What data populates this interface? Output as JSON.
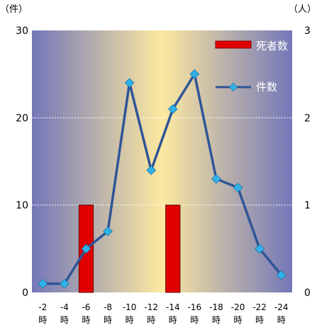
{
  "chart_data": {
    "type": "bar+line",
    "title": "",
    "categories": [
      "-2時",
      "-4時",
      "-6時",
      "-8時",
      "-10時",
      "-12時",
      "-14時",
      "-16時",
      "-18時",
      "-20時",
      "-22時",
      "-24時"
    ],
    "x_tick_labels": [
      {
        "top": "-2",
        "bottom": "時"
      },
      {
        "top": "-4",
        "bottom": "時"
      },
      {
        "top": "-6",
        "bottom": "時"
      },
      {
        "top": "-8",
        "bottom": "時"
      },
      {
        "top": "-10",
        "bottom": "時"
      },
      {
        "top": "-12",
        "bottom": "時"
      },
      {
        "top": "-14",
        "bottom": "時"
      },
      {
        "top": "-16",
        "bottom": "時"
      },
      {
        "top": "-18",
        "bottom": "時"
      },
      {
        "top": "-20",
        "bottom": "時"
      },
      {
        "top": "-22",
        "bottom": "時"
      },
      {
        "top": "-24",
        "bottom": "時"
      }
    ],
    "left_axis": {
      "unit_label": "（件）",
      "ylim": [
        0,
        30
      ],
      "ticks": [
        "0",
        "10",
        "20",
        "30"
      ]
    },
    "right_axis": {
      "unit_label": "（人）",
      "ylim": [
        0,
        3
      ],
      "ticks": [
        "0",
        "1",
        "2",
        "3"
      ]
    },
    "series": [
      {
        "name": "死者数",
        "type": "bar",
        "axis": "right",
        "values": [
          0,
          0,
          1,
          0,
          0,
          0,
          1,
          0,
          0,
          0,
          0,
          0
        ]
      },
      {
        "name": "件数",
        "type": "line",
        "axis": "left",
        "values": [
          1,
          1,
          5,
          7,
          24,
          14,
          21,
          25,
          13,
          12,
          5,
          2
        ]
      }
    ],
    "grid": true,
    "legend_position": "top-right"
  },
  "colors": {
    "bar": "#e00000",
    "line": "#2f5597",
    "marker": "#2eb2e8",
    "bg_edge": "#7377b8",
    "bg_center": "#fde9a0"
  }
}
